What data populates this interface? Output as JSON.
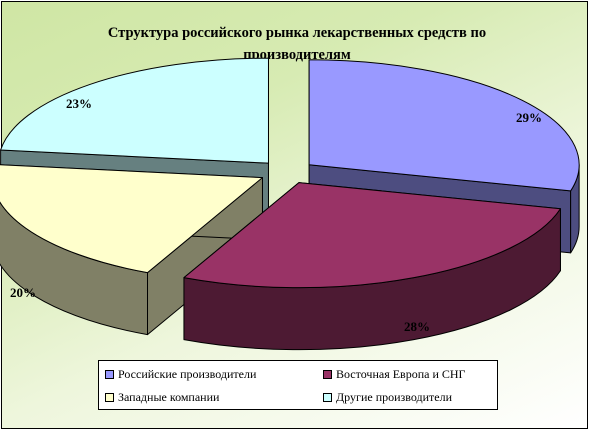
{
  "chart_data": {
    "type": "pie",
    "title": "Структура российского рынка лекарственных средств по производителям",
    "categories": [
      "Российские производители",
      "Восточная Европа и СНГ",
      "Западные компании",
      "Другие производители"
    ],
    "values": [
      29,
      28,
      20,
      23
    ],
    "labels": [
      "29%",
      "28%",
      "20%",
      "23%"
    ],
    "colors": [
      "#9999ff",
      "#993366",
      "#ffffcc",
      "#ccffff"
    ],
    "side_colors": [
      "#4d4d80",
      "#4d1a33",
      "#808066",
      "#668080"
    ],
    "legend_position": "bottom",
    "exploded": true,
    "three_d": true
  }
}
